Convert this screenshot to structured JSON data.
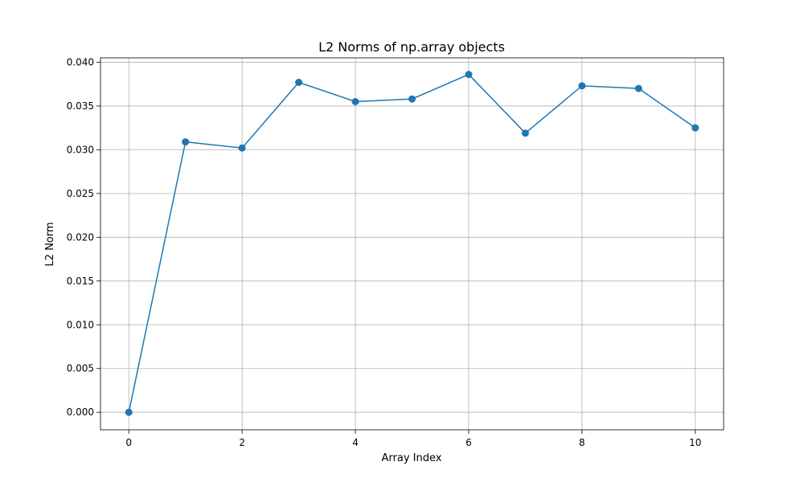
{
  "chart_data": {
    "type": "line",
    "title": "L2 Norms of np.array objects",
    "xlabel": "Array Index",
    "ylabel": "L2 Norm",
    "x": [
      0,
      1,
      2,
      3,
      4,
      5,
      6,
      7,
      8,
      9,
      10
    ],
    "series": [
      {
        "values": [
          0.0,
          0.0309,
          0.0302,
          0.0377,
          0.0355,
          0.0358,
          0.0386,
          0.0319,
          0.0373,
          0.037,
          0.0325
        ],
        "color": "#1f77b4",
        "marker": "circle"
      }
    ],
    "xlim": [
      -0.5,
      10.5
    ],
    "ylim": [
      -0.002,
      0.0405
    ],
    "xticks": [
      0,
      2,
      4,
      6,
      8,
      10
    ],
    "xtick_labels": [
      "0",
      "2",
      "4",
      "6",
      "8",
      "10"
    ],
    "yticks": [
      0.0,
      0.005,
      0.01,
      0.015,
      0.02,
      0.025,
      0.03,
      0.035,
      0.04
    ],
    "ytick_labels": [
      "0.000",
      "0.005",
      "0.010",
      "0.015",
      "0.020",
      "0.025",
      "0.030",
      "0.035",
      "0.040"
    ],
    "grid": true
  }
}
